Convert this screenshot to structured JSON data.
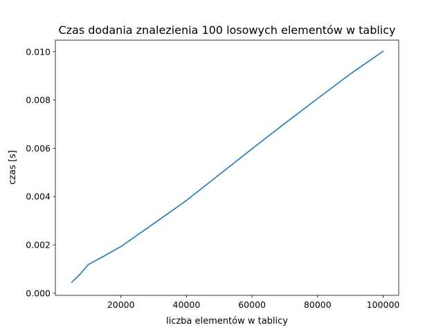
{
  "chart_data": {
    "type": "line",
    "title": "Czas dodania znalezienia 100 losowych elementów w tablicy",
    "xlabel": "liczba elementów w tablicy",
    "ylabel": "czas [s]",
    "xlim": [
      0,
      104750
    ],
    "ylim": [
      -9e-05,
      0.01048
    ],
    "xticks": [
      20000,
      40000,
      60000,
      80000,
      100000
    ],
    "xtick_labels": [
      "20000",
      "40000",
      "60000",
      "80000",
      "100000"
    ],
    "yticks": [
      0.0,
      0.002,
      0.004,
      0.006,
      0.008,
      0.01
    ],
    "ytick_labels": [
      "0.000",
      "0.002",
      "0.004",
      "0.006",
      "0.008",
      "0.010"
    ],
    "grid": false,
    "series": [
      {
        "color": "#1f77b4",
        "x": [
          5000,
          7500,
          10000,
          15000,
          20000,
          30000,
          40000,
          50000,
          60000,
          70000,
          80000,
          90000,
          100000
        ],
        "y": [
          0.00045,
          0.00078,
          0.00118,
          0.00155,
          0.00193,
          0.00288,
          0.00384,
          0.00491,
          0.00598,
          0.00703,
          0.00806,
          0.00908,
          0.01002
        ]
      }
    ]
  }
}
